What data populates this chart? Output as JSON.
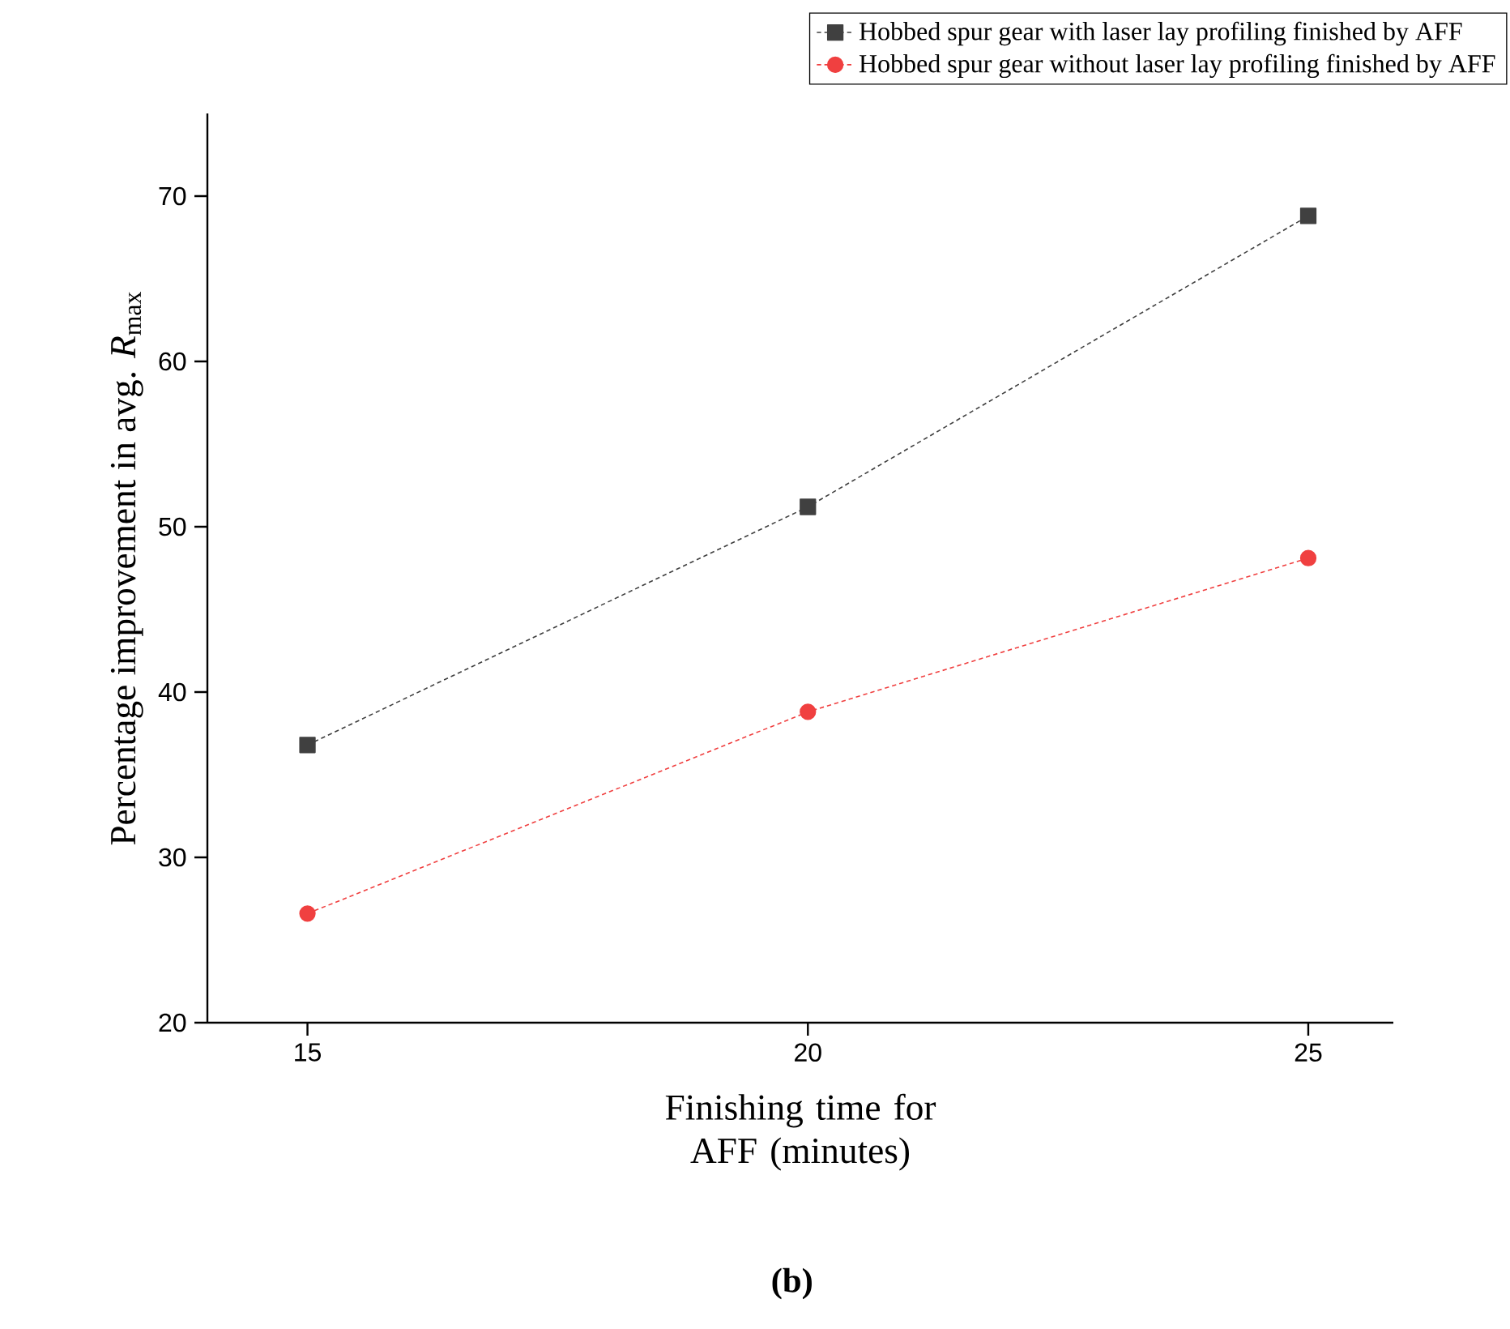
{
  "chart_data": {
    "type": "line",
    "xlabel": "Finishing time for AFF (minutes)",
    "ylabel": "Percentage improvement in avg. *R*$_{max}$",
    "x": [
      15,
      20,
      25
    ],
    "xlim": [
      14,
      25.85
    ],
    "xticks": [
      15,
      20,
      25
    ],
    "ylim": [
      20,
      75
    ],
    "yticks": [
      20,
      30,
      40,
      50,
      60,
      70
    ],
    "legend": "top right",
    "line_style": "dashed",
    "annotations": [
      "(b)"
    ],
    "series": [
      {
        "name": "Hobbed spur gear with laser lay profiling finished by AFF",
        "color": "#404040",
        "marker": "square",
        "values": [
          36.8,
          51.2,
          68.8
        ]
      },
      {
        "name": "Hobbed spur gear without laser lay profiling finished by AFF",
        "color": "#f04040",
        "marker": "circle",
        "values": [
          26.6,
          38.8,
          48.1
        ]
      }
    ]
  }
}
